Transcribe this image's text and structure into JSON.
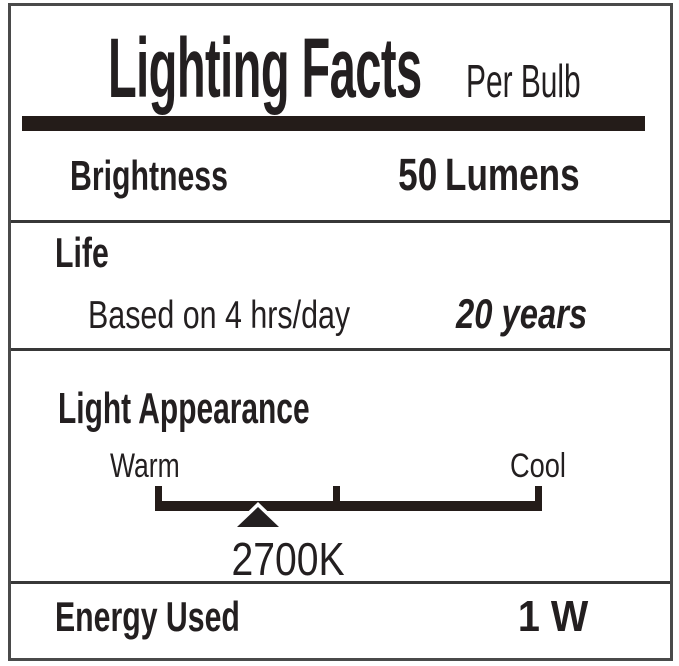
{
  "colors": {
    "ink": "#231f20",
    "thick_bar": "#241c19",
    "separator_line": "#383838",
    "outer_border": "#4a4a4a",
    "background": "#ffffff"
  },
  "label": {
    "title": "Lighting Facts",
    "subtitle": "Per Bulb",
    "brightness": {
      "name": "Brightness",
      "value": "50",
      "unit": "Lumens"
    },
    "life": {
      "name": "Life",
      "basis": "Based on 4 hrs/day",
      "value": "20 years"
    },
    "light_appearance": {
      "name": "Light Appearance",
      "warm_label": "Warm",
      "cool_label": "Cool",
      "color_temperature": "2700K"
    },
    "energy": {
      "name": "Energy Used",
      "value": "1 W"
    }
  }
}
